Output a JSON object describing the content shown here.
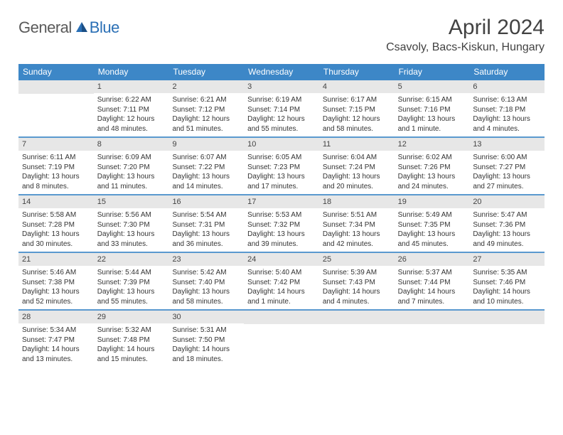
{
  "brand": {
    "general": "General",
    "blue": "Blue"
  },
  "title": "April 2024",
  "location": "Csavoly, Bacs-Kiskun, Hungary",
  "colors": {
    "header_bar": "#3d87c7",
    "daynum_bg": "#e7e7e7",
    "text": "#333333",
    "brand_gray": "#5a5a5a",
    "brand_blue": "#2a6fb5"
  },
  "dow": [
    "Sunday",
    "Monday",
    "Tuesday",
    "Wednesday",
    "Thursday",
    "Friday",
    "Saturday"
  ],
  "weeks": [
    [
      {
        "n": "",
        "sunrise": "",
        "sunset": "",
        "daylight": ""
      },
      {
        "n": "1",
        "sunrise": "Sunrise: 6:22 AM",
        "sunset": "Sunset: 7:11 PM",
        "daylight": "Daylight: 12 hours and 48 minutes."
      },
      {
        "n": "2",
        "sunrise": "Sunrise: 6:21 AM",
        "sunset": "Sunset: 7:12 PM",
        "daylight": "Daylight: 12 hours and 51 minutes."
      },
      {
        "n": "3",
        "sunrise": "Sunrise: 6:19 AM",
        "sunset": "Sunset: 7:14 PM",
        "daylight": "Daylight: 12 hours and 55 minutes."
      },
      {
        "n": "4",
        "sunrise": "Sunrise: 6:17 AM",
        "sunset": "Sunset: 7:15 PM",
        "daylight": "Daylight: 12 hours and 58 minutes."
      },
      {
        "n": "5",
        "sunrise": "Sunrise: 6:15 AM",
        "sunset": "Sunset: 7:16 PM",
        "daylight": "Daylight: 13 hours and 1 minute."
      },
      {
        "n": "6",
        "sunrise": "Sunrise: 6:13 AM",
        "sunset": "Sunset: 7:18 PM",
        "daylight": "Daylight: 13 hours and 4 minutes."
      }
    ],
    [
      {
        "n": "7",
        "sunrise": "Sunrise: 6:11 AM",
        "sunset": "Sunset: 7:19 PM",
        "daylight": "Daylight: 13 hours and 8 minutes."
      },
      {
        "n": "8",
        "sunrise": "Sunrise: 6:09 AM",
        "sunset": "Sunset: 7:20 PM",
        "daylight": "Daylight: 13 hours and 11 minutes."
      },
      {
        "n": "9",
        "sunrise": "Sunrise: 6:07 AM",
        "sunset": "Sunset: 7:22 PM",
        "daylight": "Daylight: 13 hours and 14 minutes."
      },
      {
        "n": "10",
        "sunrise": "Sunrise: 6:05 AM",
        "sunset": "Sunset: 7:23 PM",
        "daylight": "Daylight: 13 hours and 17 minutes."
      },
      {
        "n": "11",
        "sunrise": "Sunrise: 6:04 AM",
        "sunset": "Sunset: 7:24 PM",
        "daylight": "Daylight: 13 hours and 20 minutes."
      },
      {
        "n": "12",
        "sunrise": "Sunrise: 6:02 AM",
        "sunset": "Sunset: 7:26 PM",
        "daylight": "Daylight: 13 hours and 24 minutes."
      },
      {
        "n": "13",
        "sunrise": "Sunrise: 6:00 AM",
        "sunset": "Sunset: 7:27 PM",
        "daylight": "Daylight: 13 hours and 27 minutes."
      }
    ],
    [
      {
        "n": "14",
        "sunrise": "Sunrise: 5:58 AM",
        "sunset": "Sunset: 7:28 PM",
        "daylight": "Daylight: 13 hours and 30 minutes."
      },
      {
        "n": "15",
        "sunrise": "Sunrise: 5:56 AM",
        "sunset": "Sunset: 7:30 PM",
        "daylight": "Daylight: 13 hours and 33 minutes."
      },
      {
        "n": "16",
        "sunrise": "Sunrise: 5:54 AM",
        "sunset": "Sunset: 7:31 PM",
        "daylight": "Daylight: 13 hours and 36 minutes."
      },
      {
        "n": "17",
        "sunrise": "Sunrise: 5:53 AM",
        "sunset": "Sunset: 7:32 PM",
        "daylight": "Daylight: 13 hours and 39 minutes."
      },
      {
        "n": "18",
        "sunrise": "Sunrise: 5:51 AM",
        "sunset": "Sunset: 7:34 PM",
        "daylight": "Daylight: 13 hours and 42 minutes."
      },
      {
        "n": "19",
        "sunrise": "Sunrise: 5:49 AM",
        "sunset": "Sunset: 7:35 PM",
        "daylight": "Daylight: 13 hours and 45 minutes."
      },
      {
        "n": "20",
        "sunrise": "Sunrise: 5:47 AM",
        "sunset": "Sunset: 7:36 PM",
        "daylight": "Daylight: 13 hours and 49 minutes."
      }
    ],
    [
      {
        "n": "21",
        "sunrise": "Sunrise: 5:46 AM",
        "sunset": "Sunset: 7:38 PM",
        "daylight": "Daylight: 13 hours and 52 minutes."
      },
      {
        "n": "22",
        "sunrise": "Sunrise: 5:44 AM",
        "sunset": "Sunset: 7:39 PM",
        "daylight": "Daylight: 13 hours and 55 minutes."
      },
      {
        "n": "23",
        "sunrise": "Sunrise: 5:42 AM",
        "sunset": "Sunset: 7:40 PM",
        "daylight": "Daylight: 13 hours and 58 minutes."
      },
      {
        "n": "24",
        "sunrise": "Sunrise: 5:40 AM",
        "sunset": "Sunset: 7:42 PM",
        "daylight": "Daylight: 14 hours and 1 minute."
      },
      {
        "n": "25",
        "sunrise": "Sunrise: 5:39 AM",
        "sunset": "Sunset: 7:43 PM",
        "daylight": "Daylight: 14 hours and 4 minutes."
      },
      {
        "n": "26",
        "sunrise": "Sunrise: 5:37 AM",
        "sunset": "Sunset: 7:44 PM",
        "daylight": "Daylight: 14 hours and 7 minutes."
      },
      {
        "n": "27",
        "sunrise": "Sunrise: 5:35 AM",
        "sunset": "Sunset: 7:46 PM",
        "daylight": "Daylight: 14 hours and 10 minutes."
      }
    ],
    [
      {
        "n": "28",
        "sunrise": "Sunrise: 5:34 AM",
        "sunset": "Sunset: 7:47 PM",
        "daylight": "Daylight: 14 hours and 13 minutes."
      },
      {
        "n": "29",
        "sunrise": "Sunrise: 5:32 AM",
        "sunset": "Sunset: 7:48 PM",
        "daylight": "Daylight: 14 hours and 15 minutes."
      },
      {
        "n": "30",
        "sunrise": "Sunrise: 5:31 AM",
        "sunset": "Sunset: 7:50 PM",
        "daylight": "Daylight: 14 hours and 18 minutes."
      },
      {
        "n": "",
        "sunrise": "",
        "sunset": "",
        "daylight": ""
      },
      {
        "n": "",
        "sunrise": "",
        "sunset": "",
        "daylight": ""
      },
      {
        "n": "",
        "sunrise": "",
        "sunset": "",
        "daylight": ""
      },
      {
        "n": "",
        "sunrise": "",
        "sunset": "",
        "daylight": ""
      }
    ]
  ]
}
